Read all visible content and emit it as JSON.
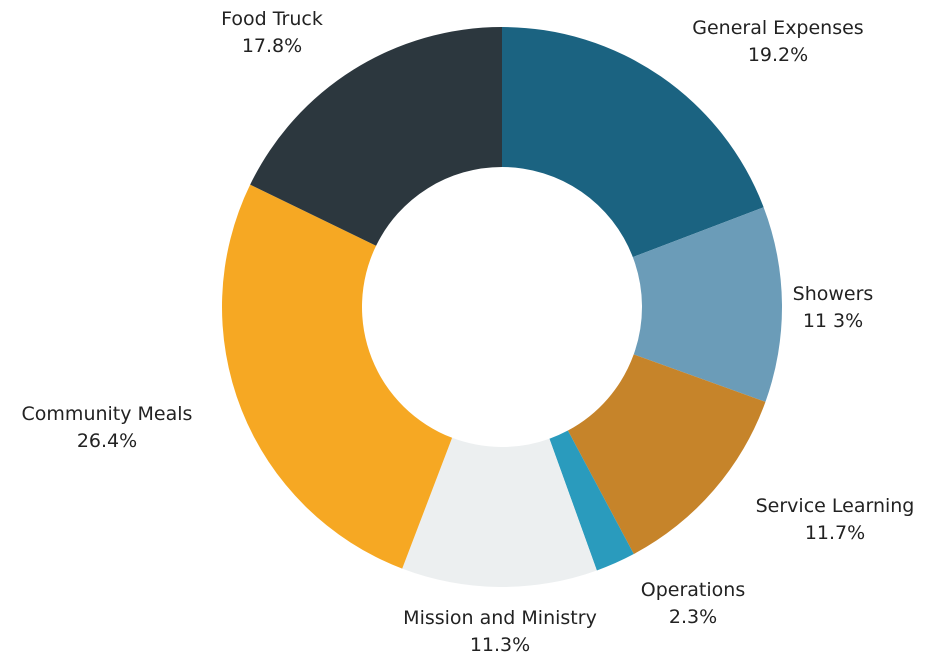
{
  "chart_data": {
    "type": "pie",
    "donut": true,
    "legend": "none",
    "slices": [
      {
        "label": "General Expenses",
        "value": 19.2,
        "value_text": "19.2%",
        "color": "#1b6381"
      },
      {
        "label": "Showers",
        "value": 11.3,
        "value_text": "11 3%",
        "color": "#6b9cb8"
      },
      {
        "label": "Service Learning",
        "value": 11.7,
        "value_text": "11.7%",
        "color": "#c6842a"
      },
      {
        "label": "Operations",
        "value": 2.3,
        "value_text": "2.3%",
        "color": "#2a9bbd"
      },
      {
        "label": "Mission and Ministry",
        "value": 11.3,
        "value_text": "11.3%",
        "color": "#eceff0"
      },
      {
        "label": "Community Meals",
        "value": 26.4,
        "value_text": "26.4%",
        "color": "#f6a823"
      },
      {
        "label": "Food Truck",
        "value": 17.8,
        "value_text": "17.8%",
        "color": "#2c373e"
      }
    ]
  }
}
